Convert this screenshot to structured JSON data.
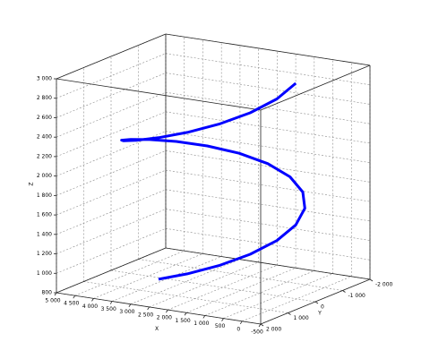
{
  "chart_data": {
    "type": "line3d",
    "xlabel": "X",
    "ylabel": "Y",
    "zlabel": "Z",
    "color": "#0000ff",
    "grid": true,
    "x": [
      2250,
      1566,
      964,
      518,
      280,
      280,
      518,
      964,
      1566,
      2250,
      2934,
      3536,
      3982,
      4220,
      4220,
      3982,
      3536,
      2934,
      2250,
      1566,
      964,
      518,
      280,
      280
    ],
    "y": [
      2000,
      1879,
      1532,
      1000,
      347,
      -347,
      -1000,
      -1532,
      -1879,
      -2000,
      -1879,
      -1532,
      -1000,
      -347,
      347,
      1000,
      1532,
      1879,
      2000,
      1879,
      1532,
      1000,
      347,
      -347
    ],
    "z": [
      1100,
      1181,
      1262,
      1343,
      1423,
      1504,
      1585,
      1666,
      1747,
      1828,
      1909,
      1989,
      2070,
      2151,
      2232,
      2313,
      2394,
      2474,
      2555,
      2636,
      2717,
      2798,
      2879,
      2960
    ],
    "xlim": [
      -500,
      5000
    ],
    "xticks": [
      {
        "value": 5000,
        "label": "5 000"
      },
      {
        "value": 4500,
        "label": "4 500"
      },
      {
        "value": 4000,
        "label": "4 000"
      },
      {
        "value": 3500,
        "label": "3 500"
      },
      {
        "value": 3000,
        "label": "3 000"
      },
      {
        "value": 2500,
        "label": "2 500"
      },
      {
        "value": 2000,
        "label": "2 000"
      },
      {
        "value": 1500,
        "label": "1 500"
      },
      {
        "value": 1000,
        "label": "1 000"
      },
      500,
      0,
      -500
    ],
    "ylim": [
      -2000,
      2000
    ],
    "yticks": [
      {
        "value": -2000,
        "label": "-2 000"
      },
      {
        "value": -1000,
        "label": "-1 000"
      },
      0,
      {
        "value": 1000,
        "label": "1 000"
      },
      {
        "value": 2000,
        "label": "2 000"
      }
    ],
    "zlim": [
      800,
      3000
    ],
    "zticks": [
      800,
      {
        "value": 1000,
        "label": "1 000"
      },
      {
        "value": 1200,
        "label": "1 200"
      },
      {
        "value": 1400,
        "label": "1 400"
      },
      {
        "value": 1600,
        "label": "1 600"
      },
      {
        "value": 1800,
        "label": "1 800"
      },
      {
        "value": 2000,
        "label": "2 000"
      },
      {
        "value": 2200,
        "label": "2 200"
      },
      {
        "value": 2400,
        "label": "2 400"
      },
      {
        "value": 2600,
        "label": "2 600"
      },
      {
        "value": 2800,
        "label": "2 800"
      },
      {
        "value": 3000,
        "label": "3 000"
      }
    ]
  }
}
